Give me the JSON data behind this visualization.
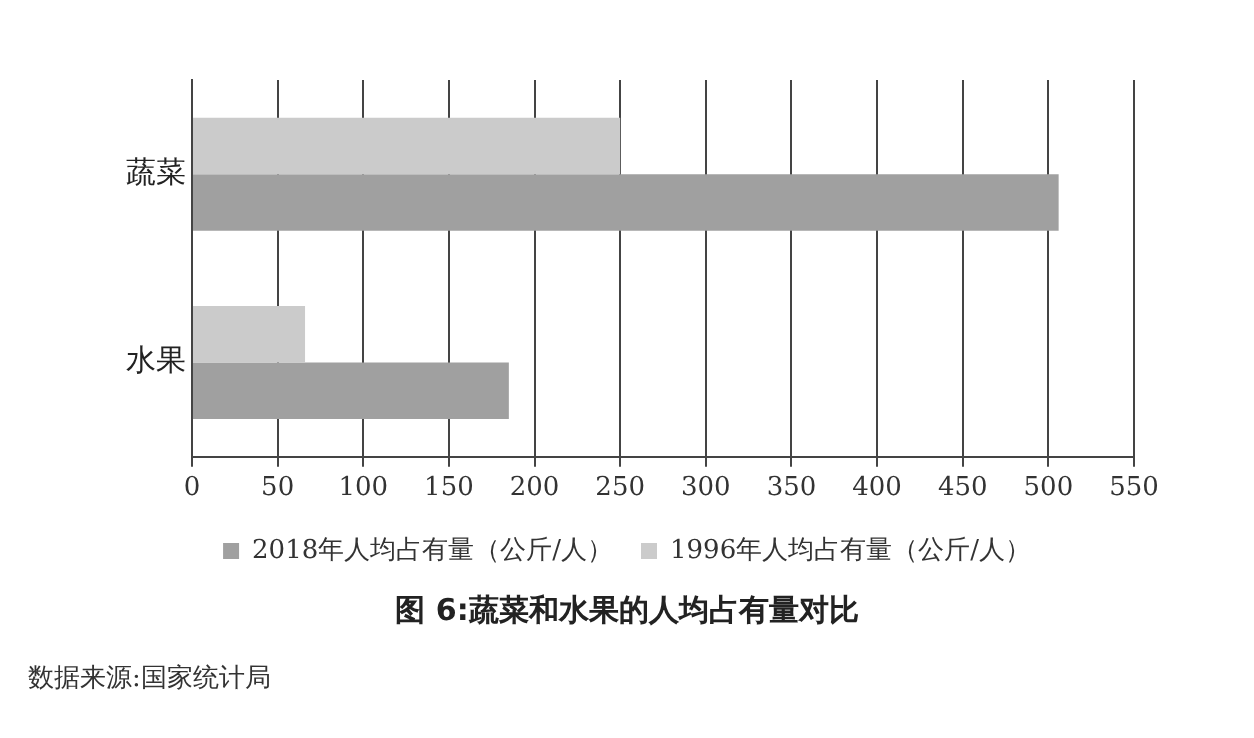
{
  "chart_data": {
    "type": "bar",
    "orientation": "horizontal",
    "title": "图 6:蔬菜和水果的人均占有量对比",
    "categories": [
      "蔬菜",
      "水果"
    ],
    "series": [
      {
        "name": "2018年人均占有量（公斤/人）",
        "color": "#a0a0a0",
        "values": [
          506,
          185
        ]
      },
      {
        "name": "1996年人均占有量（公斤/人）",
        "color": "#cbcbcb",
        "values": [
          250,
          66
        ]
      }
    ],
    "xlim": [
      0,
      550
    ],
    "xticks": [
      0,
      50,
      100,
      150,
      200,
      250,
      300,
      350,
      400,
      450,
      500,
      550
    ],
    "grid": "x",
    "legend": "bottom",
    "annotations": [
      "数据来源:国家统计局"
    ]
  }
}
